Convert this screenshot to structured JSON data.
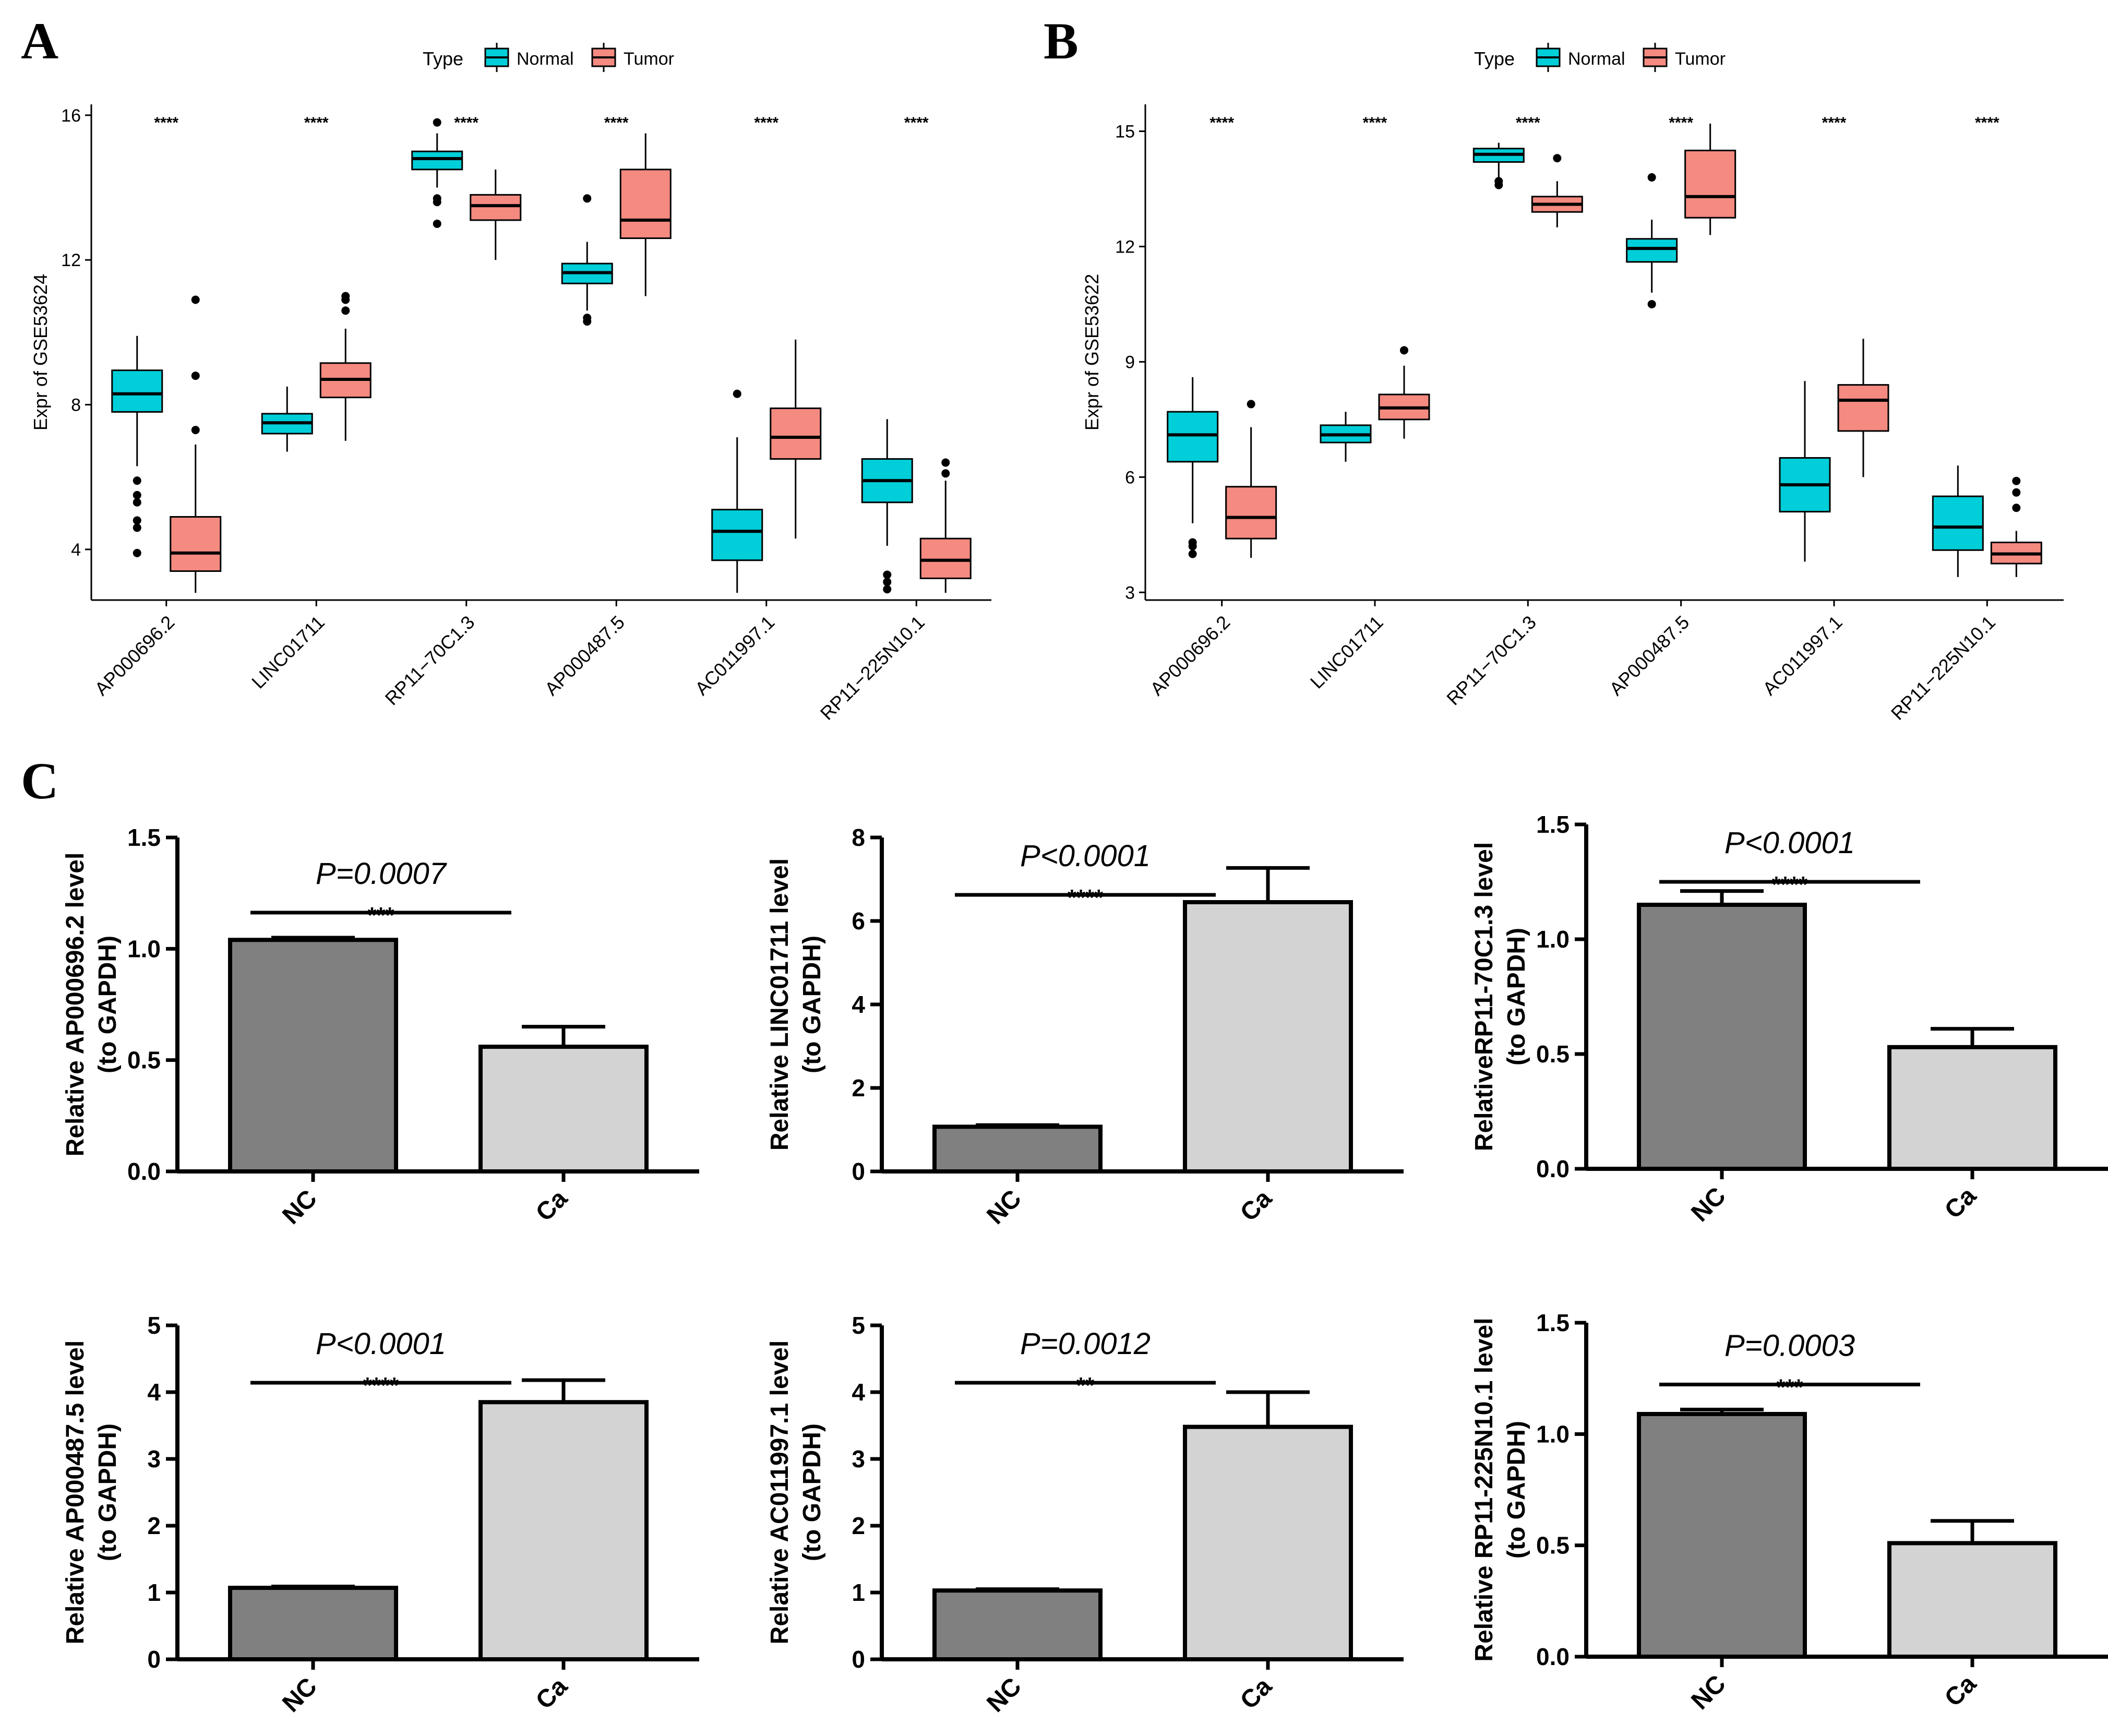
{
  "panel_labels": {
    "a": "A",
    "b": "B",
    "c": "C"
  },
  "colors": {
    "normal": "#00CED8",
    "tumor": "#F48A80",
    "nc": "#808080",
    "ca": "#D3D3D3",
    "axis": "#000000"
  },
  "chart_data": [
    {
      "id": "A",
      "type": "boxplot",
      "legend": {
        "title": "Type",
        "entries": [
          "Normal",
          "Tumor"
        ],
        "placement": "top"
      },
      "ylabel": "Expr of GSE53624",
      "xlabel": "",
      "ylim": [
        2.6,
        16.3
      ],
      "yticks": [
        4,
        8,
        12,
        16
      ],
      "categories": [
        "AP000696.2",
        "LINC01711",
        "RP11−70C1.3",
        "AP000487.5",
        "AC011997.1",
        "RP11−225N10.1"
      ],
      "significance": [
        "****",
        "****",
        "****",
        "****",
        "****",
        "****"
      ],
      "series": [
        {
          "name": "Normal",
          "boxes": [
            {
              "min": 6.3,
              "q1": 7.8,
              "median": 8.3,
              "q3": 8.95,
              "max": 9.9,
              "outliers": [
                5.9,
                5.5,
                5.3,
                4.8,
                4.6,
                3.9
              ]
            },
            {
              "min": 6.7,
              "q1": 7.2,
              "median": 7.5,
              "q3": 7.75,
              "max": 8.5,
              "outliers": []
            },
            {
              "min": 14.0,
              "q1": 14.5,
              "median": 14.8,
              "q3": 15.0,
              "max": 15.5,
              "outliers": [
                15.8,
                13.7,
                13.6,
                13.0
              ]
            },
            {
              "min": 10.6,
              "q1": 11.35,
              "median": 11.65,
              "q3": 11.9,
              "max": 12.5,
              "outliers": [
                13.7,
                10.4,
                10.3
              ]
            },
            {
              "min": 2.8,
              "q1": 3.7,
              "median": 4.5,
              "q3": 5.1,
              "max": 7.1,
              "outliers": [
                8.3
              ]
            },
            {
              "min": 4.1,
              "q1": 5.3,
              "median": 5.9,
              "q3": 6.5,
              "max": 7.6,
              "outliers": [
                3.3,
                3.1,
                2.9
              ]
            }
          ]
        },
        {
          "name": "Tumor",
          "boxes": [
            {
              "min": 2.8,
              "q1": 3.4,
              "median": 3.9,
              "q3": 4.9,
              "max": 6.9,
              "outliers": [
                7.3,
                8.8,
                10.9
              ]
            },
            {
              "min": 7.0,
              "q1": 8.2,
              "median": 8.7,
              "q3": 9.15,
              "max": 10.1,
              "outliers": [
                10.6,
                10.9,
                11.0
              ]
            },
            {
              "min": 12.0,
              "q1": 13.1,
              "median": 13.5,
              "q3": 13.8,
              "max": 14.5,
              "outliers": []
            },
            {
              "min": 11.0,
              "q1": 12.6,
              "median": 13.1,
              "q3": 14.5,
              "max": 15.5,
              "outliers": []
            },
            {
              "min": 4.3,
              "q1": 6.5,
              "median": 7.1,
              "q3": 7.9,
              "max": 9.8,
              "outliers": []
            },
            {
              "min": 2.8,
              "q1": 3.2,
              "median": 3.7,
              "q3": 4.3,
              "max": 5.9,
              "outliers": [
                6.1,
                6.4
              ]
            }
          ]
        }
      ]
    },
    {
      "id": "B",
      "type": "boxplot",
      "legend": {
        "title": "Type",
        "entries": [
          "Normal",
          "Tumor"
        ],
        "placement": "top"
      },
      "ylabel": "Expr of GSE53622",
      "xlabel": "",
      "ylim": [
        2.8,
        15.7
      ],
      "yticks": [
        3,
        6,
        9,
        12,
        15
      ],
      "categories": [
        "AP000696.2",
        "LINC01711",
        "RP11−70C1.3",
        "AP000487.5",
        "AC011997.1",
        "RP11−225N10.1"
      ],
      "significance": [
        "****",
        "****",
        "****",
        "****",
        "****",
        "****"
      ],
      "series": [
        {
          "name": "Normal",
          "boxes": [
            {
              "min": 4.8,
              "q1": 6.4,
              "median": 7.1,
              "q3": 7.7,
              "max": 8.6,
              "outliers": [
                4.3,
                4.2,
                4.0
              ]
            },
            {
              "min": 6.4,
              "q1": 6.9,
              "median": 7.1,
              "q3": 7.35,
              "max": 7.7,
              "outliers": []
            },
            {
              "min": 13.8,
              "q1": 14.2,
              "median": 14.4,
              "q3": 14.55,
              "max": 14.7,
              "outliers": [
                13.7,
                13.6
              ]
            },
            {
              "min": 10.8,
              "q1": 11.6,
              "median": 11.95,
              "q3": 12.2,
              "max": 12.7,
              "outliers": [
                13.8,
                10.5
              ]
            },
            {
              "min": 3.8,
              "q1": 5.1,
              "median": 5.8,
              "q3": 6.5,
              "max": 8.5,
              "outliers": []
            },
            {
              "min": 3.4,
              "q1": 4.1,
              "median": 4.7,
              "q3": 5.5,
              "max": 6.3,
              "outliers": []
            }
          ]
        },
        {
          "name": "Tumor",
          "boxes": [
            {
              "min": 3.9,
              "q1": 4.4,
              "median": 4.95,
              "q3": 5.75,
              "max": 7.3,
              "outliers": [
                7.9
              ]
            },
            {
              "min": 7.0,
              "q1": 7.5,
              "median": 7.8,
              "q3": 8.15,
              "max": 8.9,
              "outliers": [
                9.3
              ]
            },
            {
              "min": 12.5,
              "q1": 12.9,
              "median": 13.1,
              "q3": 13.3,
              "max": 13.7,
              "outliers": [
                14.3
              ]
            },
            {
              "min": 12.3,
              "q1": 12.75,
              "median": 13.3,
              "q3": 14.5,
              "max": 15.2,
              "outliers": []
            },
            {
              "min": 6.0,
              "q1": 7.2,
              "median": 8.0,
              "q3": 8.4,
              "max": 9.6,
              "outliers": []
            },
            {
              "min": 3.4,
              "q1": 3.75,
              "median": 4.0,
              "q3": 4.3,
              "max": 4.6,
              "outliers": [
                5.2,
                5.6,
                5.9
              ]
            }
          ]
        }
      ]
    },
    {
      "id": "C1",
      "type": "bar",
      "ylabel": [
        "Relative AP000696.2 level",
        "(to GAPDH)"
      ],
      "categories": [
        "NC",
        "Ca"
      ],
      "values": [
        1.04,
        0.56
      ],
      "errors": [
        0.01,
        0.09
      ],
      "ylim": [
        0,
        1.5
      ],
      "yticks": [
        "0.0",
        "0.5",
        "1.0",
        "1.5"
      ],
      "pvalue": "P=0.0007",
      "stars": "***"
    },
    {
      "id": "C2",
      "type": "bar",
      "ylabel": [
        "Relative LINC01711 level",
        "(to GAPDH)"
      ],
      "categories": [
        "NC",
        "Ca"
      ],
      "values": [
        1.07,
        6.45
      ],
      "errors": [
        0.04,
        0.82
      ],
      "ylim": [
        0,
        8
      ],
      "yticks": [
        "0",
        "2",
        "4",
        "6",
        "8"
      ],
      "pvalue": "P<0.0001",
      "stars": "****"
    },
    {
      "id": "C3",
      "type": "bar",
      "ylabel": [
        "RelativeRP11-70C1.3 level",
        "(to GAPDH)"
      ],
      "categories": [
        "NC",
        "Ca"
      ],
      "values": [
        1.15,
        0.53
      ],
      "errors": [
        0.06,
        0.08
      ],
      "ylim": [
        0,
        1.5
      ],
      "yticks": [
        "0.0",
        "0.5",
        "1.0",
        "1.5"
      ],
      "pvalue": "P<0.0001",
      "stars": "****"
    },
    {
      "id": "C4",
      "type": "bar",
      "ylabel": [
        "Relative AP000487.5 level",
        "(to GAPDH)"
      ],
      "categories": [
        "NC",
        "Ca"
      ],
      "values": [
        1.07,
        3.85
      ],
      "errors": [
        0.02,
        0.33
      ],
      "ylim": [
        0,
        5
      ],
      "yticks": [
        "0",
        "1",
        "2",
        "3",
        "4",
        "5"
      ],
      "pvalue": "P<0.0001",
      "stars": "****"
    },
    {
      "id": "C5",
      "type": "bar",
      "ylabel": [
        "Relative AC011997.1 level",
        "(to GAPDH)"
      ],
      "categories": [
        "NC",
        "Ca"
      ],
      "values": [
        1.03,
        3.48
      ],
      "errors": [
        0.02,
        0.52
      ],
      "ylim": [
        0,
        5
      ],
      "yticks": [
        "0",
        "1",
        "2",
        "3",
        "4",
        "5"
      ],
      "pvalue": "P=0.0012",
      "stars": "**"
    },
    {
      "id": "C6",
      "type": "bar",
      "ylabel": [
        "Relative RP11-225N10.1 level",
        "(to GAPDH)"
      ],
      "categories": [
        "NC",
        "Ca"
      ],
      "values": [
        1.09,
        0.51
      ],
      "errors": [
        0.02,
        0.1
      ],
      "ylim": [
        0,
        1.5
      ],
      "yticks": [
        "0.0",
        "0.5",
        "1.0",
        "1.5"
      ],
      "pvalue": "P=0.0003",
      "stars": "***"
    }
  ]
}
